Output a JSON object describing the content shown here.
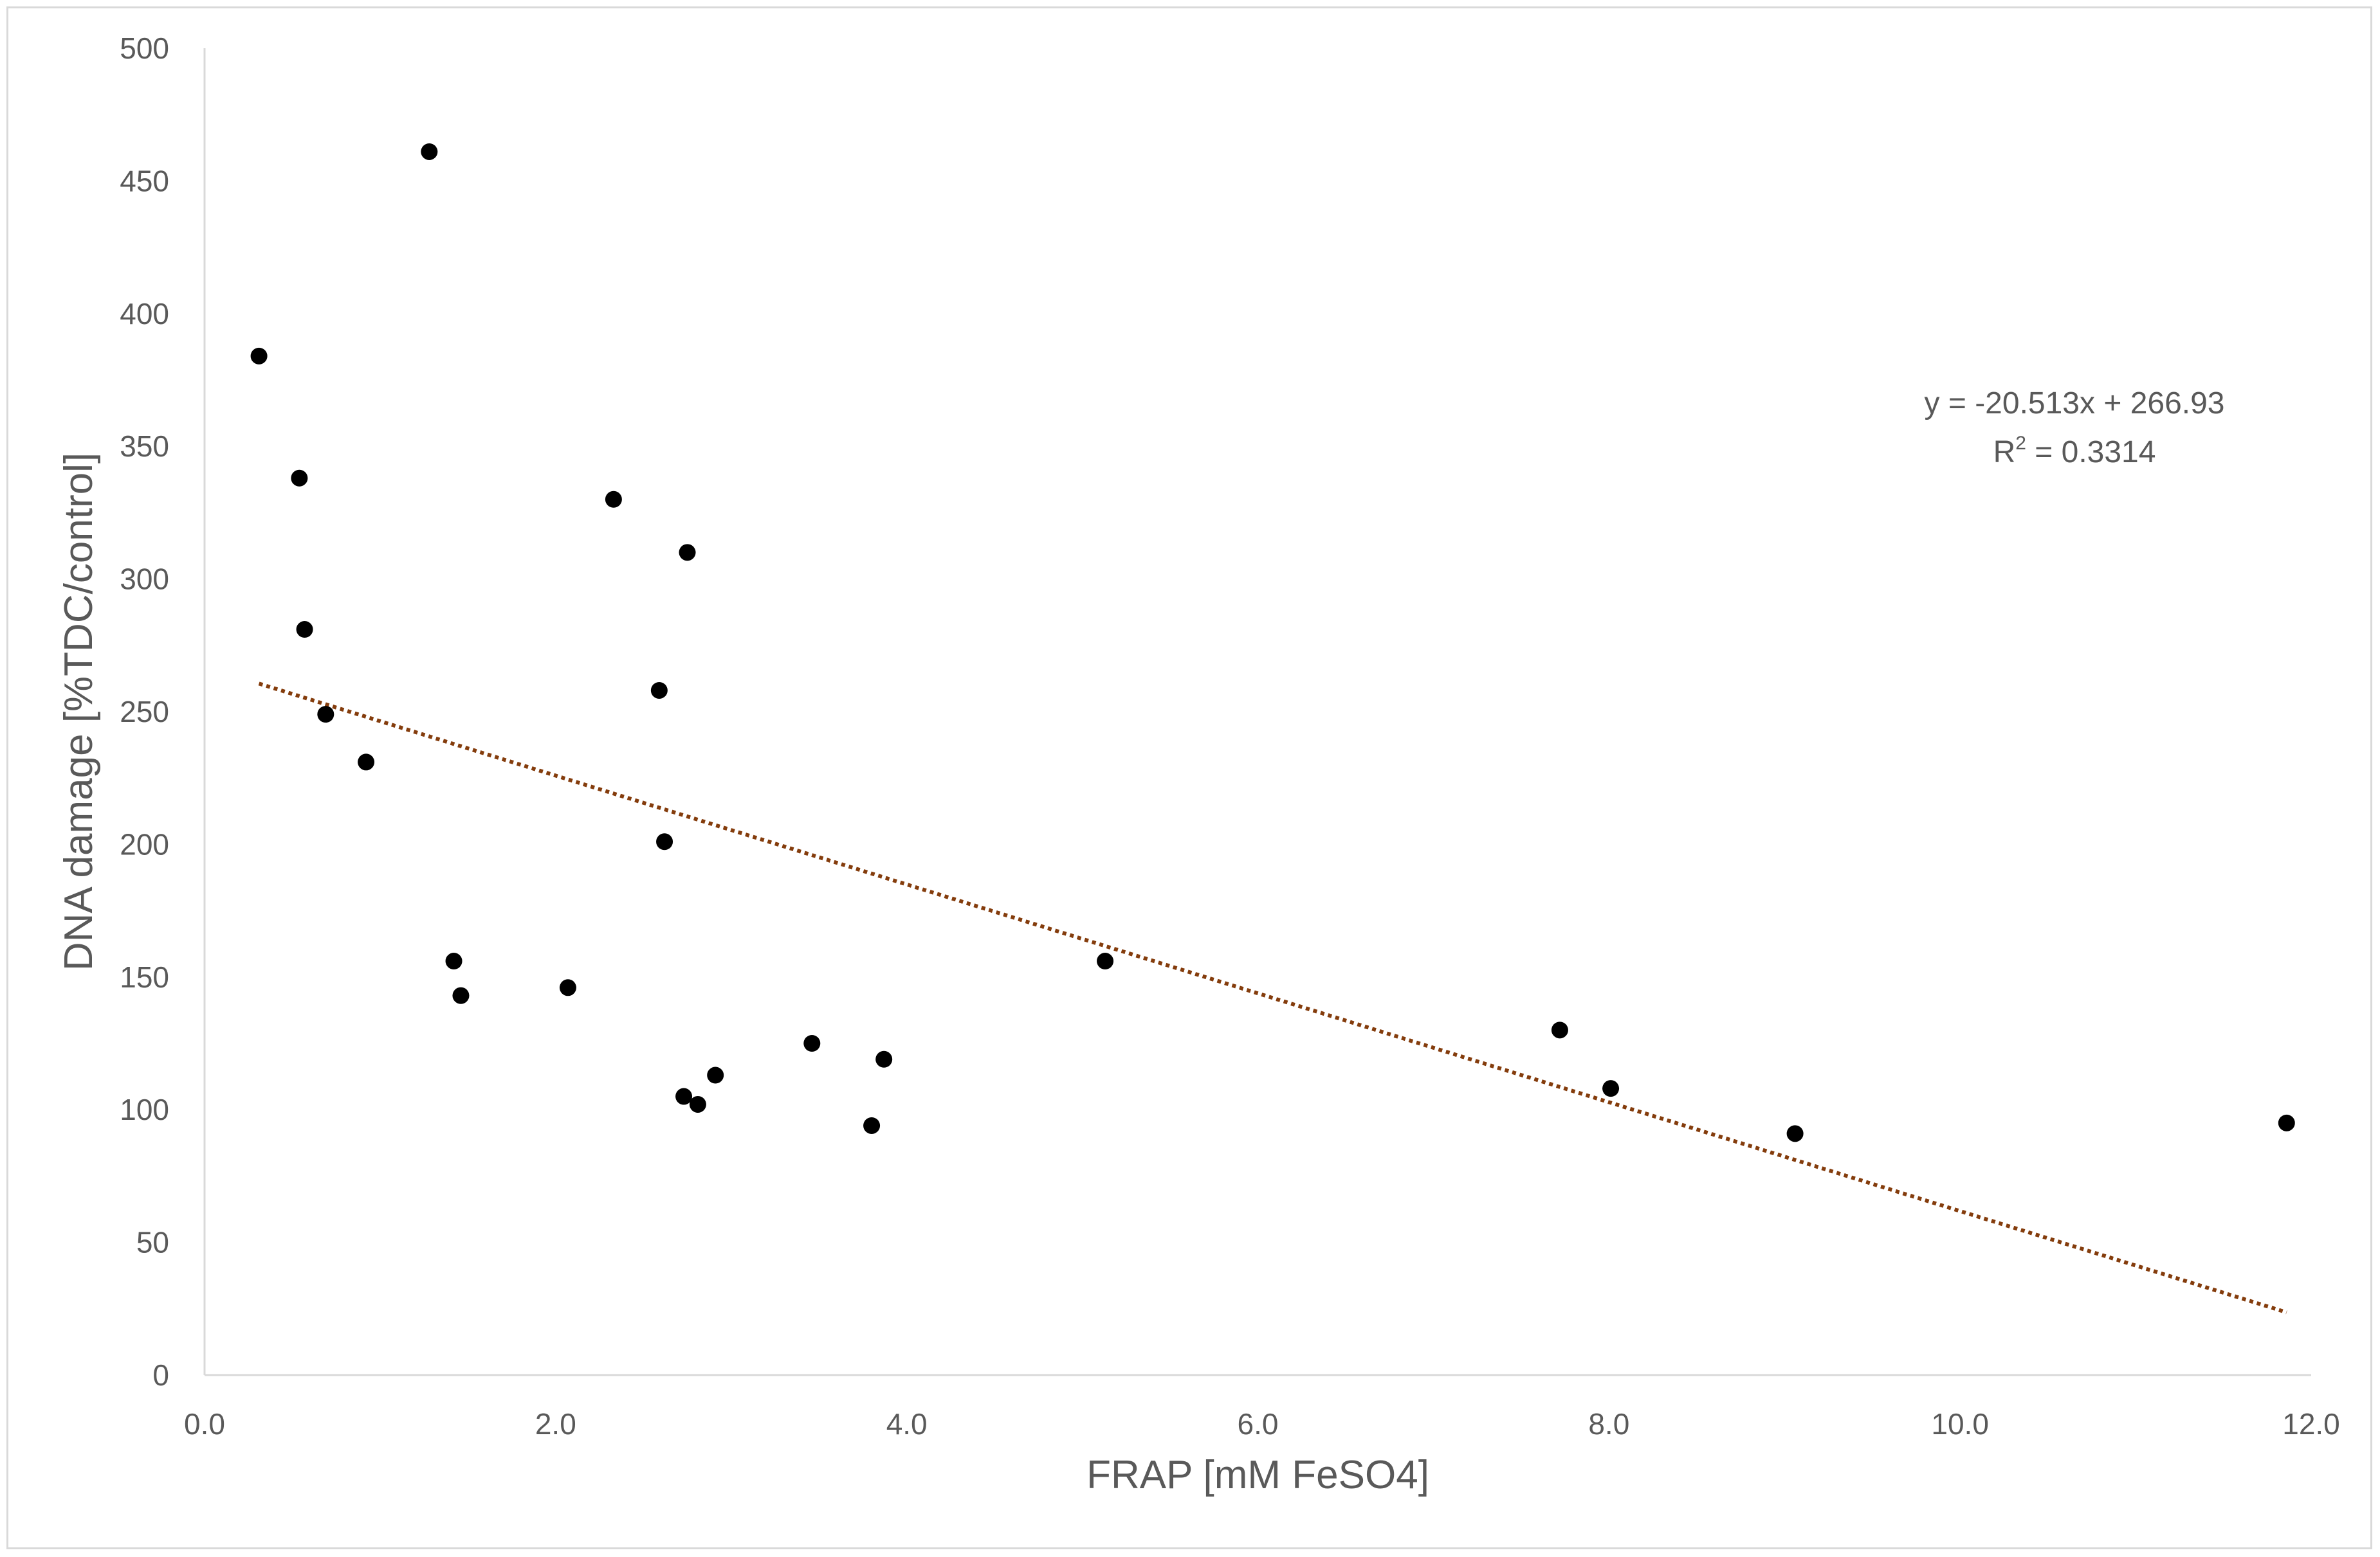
{
  "chart_data": {
    "type": "scatter",
    "xlabel": "FRAP [mM FeSO4]",
    "ylabel": "DNA damage [%TDC/control]",
    "xlim": [
      0,
      12
    ],
    "ylim": [
      0,
      500
    ],
    "x_ticks": [
      0,
      2,
      4,
      6,
      8,
      10,
      12
    ],
    "x_tick_labels": [
      "0.0",
      "2.0",
      "4.0",
      "6.0",
      "8.0",
      "10.0",
      "12.0"
    ],
    "y_ticks": [
      0,
      50,
      100,
      150,
      200,
      250,
      300,
      350,
      400,
      450,
      500
    ],
    "y_tick_labels": [
      "0",
      "50",
      "100",
      "150",
      "200",
      "250",
      "300",
      "350",
      "400",
      "450",
      "500"
    ],
    "grid": false,
    "marker_color": "#000000",
    "points": [
      {
        "x": 0.31,
        "y": 384
      },
      {
        "x": 0.54,
        "y": 338
      },
      {
        "x": 0.57,
        "y": 281
      },
      {
        "x": 0.69,
        "y": 249
      },
      {
        "x": 0.92,
        "y": 231
      },
      {
        "x": 1.28,
        "y": 461
      },
      {
        "x": 1.42,
        "y": 156
      },
      {
        "x": 1.46,
        "y": 143
      },
      {
        "x": 2.07,
        "y": 146
      },
      {
        "x": 2.33,
        "y": 330
      },
      {
        "x": 2.59,
        "y": 258
      },
      {
        "x": 2.62,
        "y": 201
      },
      {
        "x": 2.73,
        "y": 105
      },
      {
        "x": 2.75,
        "y": 310
      },
      {
        "x": 2.81,
        "y": 102
      },
      {
        "x": 2.91,
        "y": 113
      },
      {
        "x": 3.46,
        "y": 125
      },
      {
        "x": 3.8,
        "y": 94
      },
      {
        "x": 3.87,
        "y": 119
      },
      {
        "x": 5.13,
        "y": 156
      },
      {
        "x": 7.72,
        "y": 130
      },
      {
        "x": 8.01,
        "y": 108
      },
      {
        "x": 9.06,
        "y": 91
      },
      {
        "x": 11.86,
        "y": 95
      }
    ],
    "trendline": {
      "type": "linear",
      "slope": -20.513,
      "intercept": 266.93,
      "x_range": [
        0.31,
        11.86
      ],
      "color": "#843c0c",
      "style": "dotted"
    },
    "annotations": {
      "equation": "y = -20.513x + 266.93",
      "r2_prefix": "R",
      "r2_sup": "2",
      "r2_suffix": " = 0.3314"
    }
  }
}
